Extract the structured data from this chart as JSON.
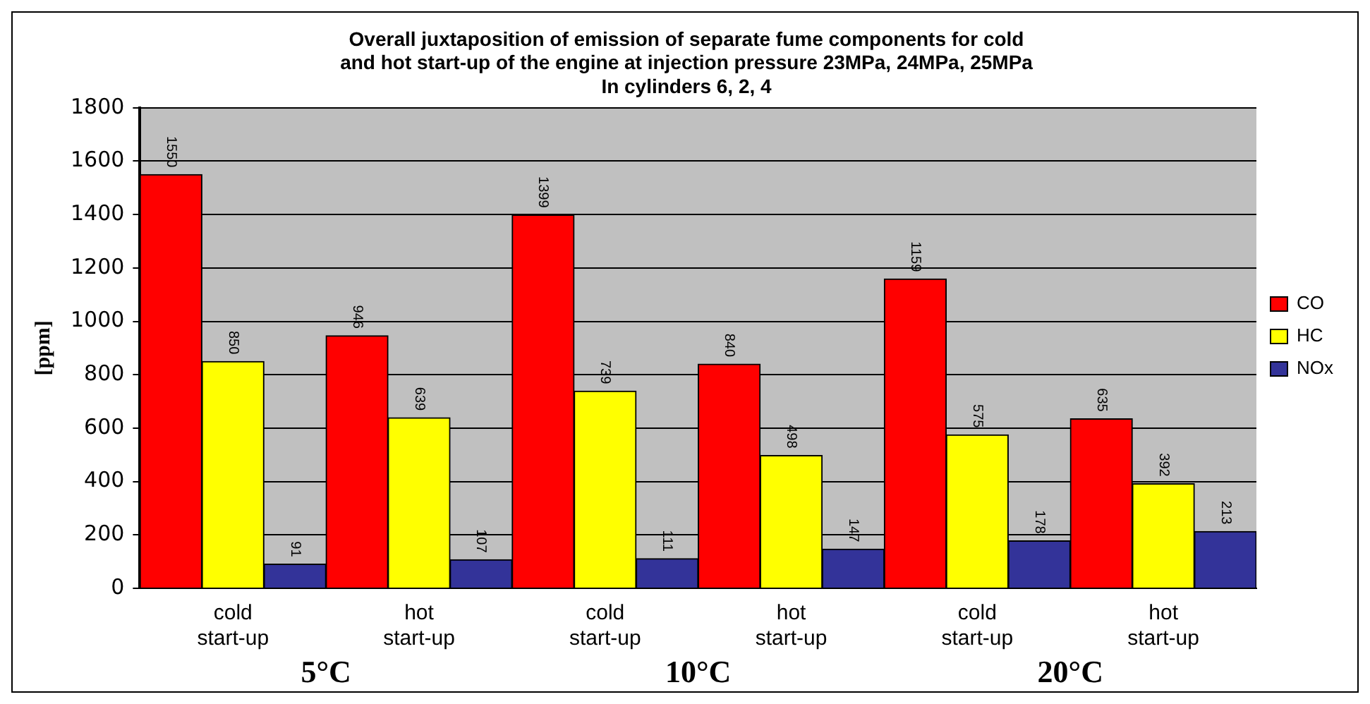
{
  "chart_data": {
    "type": "bar",
    "title": "Overall juxtaposition of emission of separate fume components for cold and hot start-up of the engine at injection pressure 23MPa, 24MPa, 25MPa In cylinders 6, 2, 4",
    "ylabel": "[ppm]",
    "categories": [
      "cold start-up",
      "hot start-up",
      "cold start-up",
      "hot start-up",
      "cold start-up",
      "hot start-up"
    ],
    "series": [
      {
        "name": "CO",
        "color": "#ff0000",
        "values": [
          1550,
          946,
          1399,
          840,
          1159,
          635
        ]
      },
      {
        "name": "HC",
        "color": "#ffff00",
        "values": [
          850,
          639,
          739,
          498,
          575,
          392
        ]
      },
      {
        "name": "NOx",
        "color": "#333399",
        "values": [
          91,
          107,
          111,
          147,
          178,
          213
        ]
      }
    ],
    "ylim": [
      0,
      1800
    ],
    "yticks": [
      0,
      200,
      400,
      600,
      800,
      1000,
      1200,
      1400,
      1600,
      1800
    ],
    "grid": "y",
    "legend": "right",
    "data_labels": true,
    "annotations": [
      "5°C",
      "10°C",
      "20°C"
    ]
  }
}
